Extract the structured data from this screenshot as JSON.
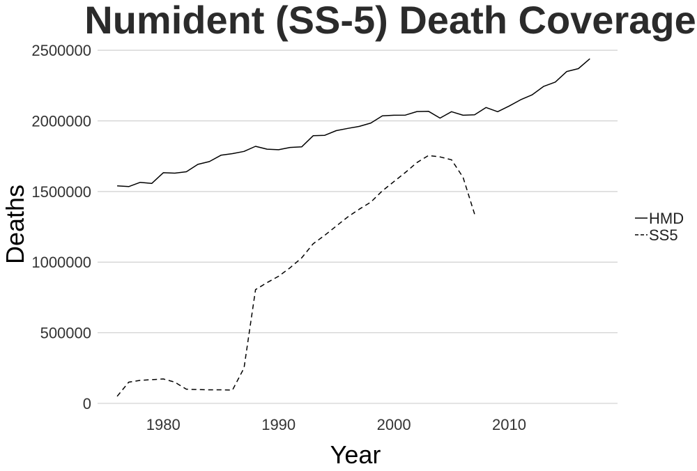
{
  "chart_data": {
    "type": "line",
    "title": "Numident (SS-5) Death Coverage",
    "xlabel": "Year",
    "ylabel": "Deaths",
    "xlim": [
      1974.3,
      2019.4
    ],
    "ylim": [
      -30000,
      2560000
    ],
    "x_ticks": [
      1980,
      1990,
      2000,
      2010
    ],
    "y_ticks": [
      0,
      500000,
      1000000,
      1500000,
      2000000,
      2500000
    ],
    "grid": "horizontal-major",
    "legend_position": "right",
    "series": [
      {
        "name": "HMD",
        "linestyle": "solid",
        "color": "#000000",
        "x": [
          1976,
          1977,
          1978,
          1979,
          1980,
          1981,
          1982,
          1983,
          1984,
          1985,
          1986,
          1987,
          1988,
          1989,
          1990,
          1991,
          1992,
          1993,
          1994,
          1995,
          1996,
          1997,
          1998,
          1999,
          2000,
          2001,
          2002,
          2003,
          2004,
          2005,
          2006,
          2007,
          2008,
          2009,
          2010,
          2011,
          2012,
          2013,
          2014,
          2015,
          2016,
          2017
        ],
        "values": [
          1540000,
          1535000,
          1565000,
          1557000,
          1633000,
          1630000,
          1640000,
          1692000,
          1712000,
          1757000,
          1768000,
          1784000,
          1820000,
          1800000,
          1796000,
          1812000,
          1816000,
          1895000,
          1898000,
          1931000,
          1947000,
          1961000,
          1985000,
          2036000,
          2040000,
          2041000,
          2066000,
          2068000,
          2020000,
          2065000,
          2040000,
          2043000,
          2095000,
          2065000,
          2105000,
          2150000,
          2185000,
          2245000,
          2275000,
          2350000,
          2370000,
          2440000
        ]
      },
      {
        "name": "SS5",
        "linestyle": "dashed",
        "color": "#000000",
        "x": [
          1976,
          1977,
          1978,
          1979,
          1980,
          1981,
          1982,
          1983,
          1984,
          1985,
          1986,
          1987,
          1988,
          1989,
          1990,
          1991,
          1992,
          1993,
          1994,
          1995,
          1996,
          1997,
          1998,
          1999,
          2000,
          2001,
          2002,
          2003,
          2004,
          2005,
          2006,
          2007
        ],
        "values": [
          50000,
          150000,
          163000,
          168000,
          173000,
          150000,
          100000,
          98000,
          96000,
          96000,
          94000,
          250000,
          805000,
          855000,
          900000,
          960000,
          1030000,
          1130000,
          1190000,
          1255000,
          1320000,
          1375000,
          1425000,
          1505000,
          1570000,
          1635000,
          1705000,
          1755000,
          1745000,
          1725000,
          1600000,
          1340000
        ]
      }
    ]
  }
}
